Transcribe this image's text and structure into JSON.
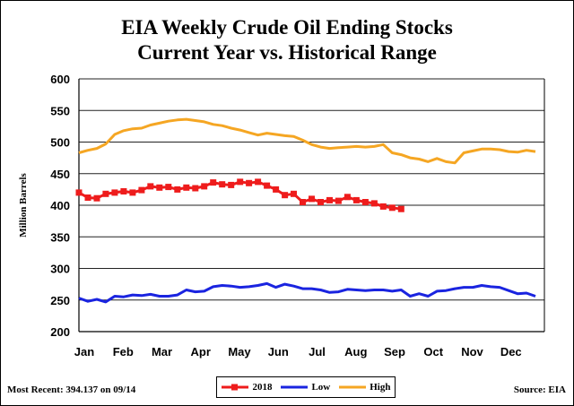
{
  "title_line1": "EIA Weekly Crude Oil Ending Stocks",
  "title_line2": "Current Year vs. Historical Range",
  "footer_left": "Most Recent: 394.137 on 09/14",
  "footer_right": "Source: EIA",
  "colors": {
    "2018": "#ee1c1c",
    "Low": "#1a24e0",
    "High": "#f5a623",
    "grid": "#222222"
  },
  "chart_data": {
    "type": "line",
    "title": "EIA Weekly Crude Oil Ending Stocks Current Year vs. Historical Range",
    "ylabel": "Million Barrels",
    "xlabel": "",
    "ylim": [
      200,
      600
    ],
    "y_ticks": [
      200,
      250,
      300,
      350,
      400,
      450,
      500,
      550,
      600
    ],
    "x_ticks": [
      "Jan",
      "Feb",
      "Mar",
      "Apr",
      "May",
      "Jun",
      "Jul",
      "Aug",
      "Sep",
      "Oct",
      "Nov",
      "Dec"
    ],
    "grid": true,
    "legend_position": "bottom-center",
    "series": [
      {
        "name": "2018",
        "marker": "square",
        "values": [
          420,
          412,
          411,
          418,
          420,
          422,
          420,
          424,
          430,
          428,
          429,
          425,
          428,
          427,
          430,
          436,
          433,
          432,
          437,
          435,
          437,
          431,
          425,
          416,
          418,
          405,
          410,
          405,
          408,
          407,
          413,
          408,
          405,
          403,
          398,
          396,
          394
        ]
      },
      {
        "name": "Low",
        "values": [
          253,
          248,
          251,
          247,
          256,
          255,
          258,
          257,
          259,
          256,
          256,
          258,
          266,
          263,
          264,
          271,
          273,
          272,
          270,
          271,
          273,
          276,
          270,
          275,
          272,
          268,
          268,
          266,
          262,
          263,
          267,
          266,
          265,
          266,
          266,
          264,
          266,
          256,
          260,
          256,
          264,
          265,
          268,
          270,
          270,
          273,
          271,
          270,
          265,
          260,
          261,
          256
        ]
      },
      {
        "name": "High",
        "values": [
          483,
          487,
          490,
          497,
          512,
          518,
          521,
          522,
          527,
          530,
          533,
          535,
          536,
          534,
          532,
          528,
          526,
          522,
          519,
          515,
          511,
          514,
          512,
          510,
          509,
          503,
          496,
          492,
          490,
          491,
          492,
          493,
          492,
          493,
          496,
          483,
          480,
          475,
          473,
          469,
          474,
          469,
          467,
          483,
          486,
          489,
          489,
          488,
          485,
          484,
          487,
          485
        ]
      }
    ]
  }
}
